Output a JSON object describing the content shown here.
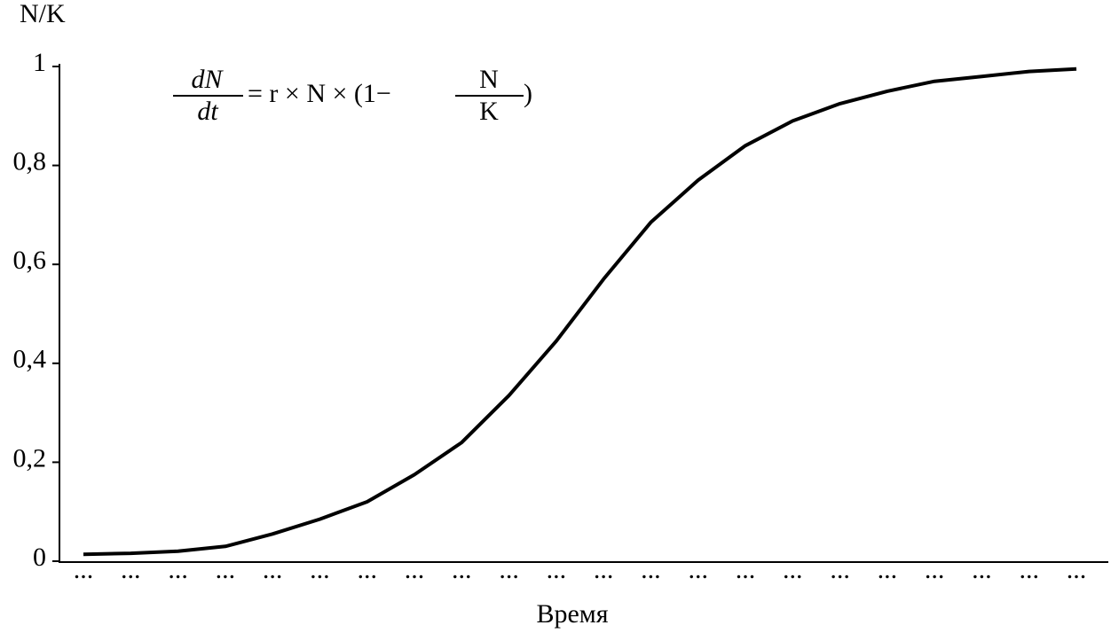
{
  "chart_data": {
    "type": "line",
    "y_label": "N/K",
    "x_label": "Время",
    "formula": {
      "lhs_numerator": "dN",
      "lhs_denominator": "dt",
      "middle": "= r × N × (1−",
      "rhs_numerator": "N",
      "rhs_denominator": "K",
      "close": ")"
    },
    "categories": [
      "...",
      "...",
      "...",
      "...",
      "...",
      "...",
      "...",
      "...",
      "...",
      "...",
      "...",
      "...",
      "...",
      "...",
      "...",
      "...",
      "...",
      "...",
      "...",
      "...",
      "...",
      "..."
    ],
    "series": [
      {
        "name": "N/K",
        "color": "#000000",
        "values": [
          0.014,
          0.016,
          0.02,
          0.03,
          0.055,
          0.085,
          0.12,
          0.175,
          0.24,
          0.335,
          0.445,
          0.57,
          0.685,
          0.77,
          0.84,
          0.89,
          0.925,
          0.95,
          0.97,
          0.98,
          0.99,
          0.995
        ]
      }
    ],
    "ylim": [
      0,
      1
    ],
    "yticks": [
      0,
      {
        "value": 0.2,
        "label": "0,2"
      },
      {
        "value": 0.4,
        "label": "0,4"
      },
      {
        "value": 0.6,
        "label": "0,6"
      },
      {
        "value": 0.8,
        "label": "0,8"
      },
      1
    ],
    "grid": false
  }
}
